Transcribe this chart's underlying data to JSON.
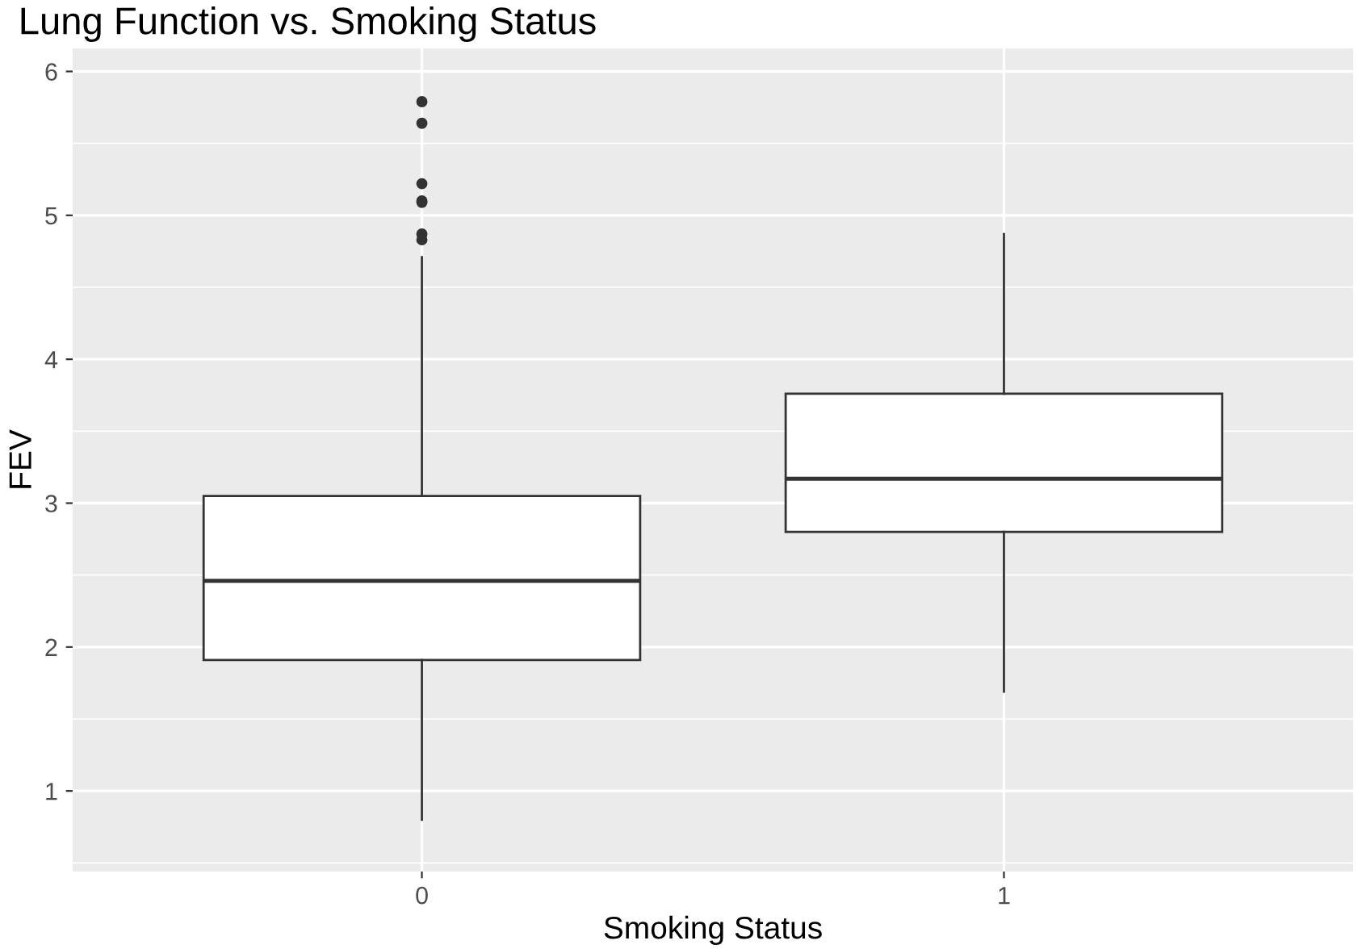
{
  "chart_data": {
    "type": "box",
    "title": "Lung Function vs. Smoking Status",
    "xlabel": "Smoking Status",
    "ylabel": "FEV",
    "categories": [
      "0",
      "1"
    ],
    "boxes": [
      {
        "low": 0.8,
        "q1": 1.91,
        "median": 2.46,
        "q3": 3.05,
        "high": 4.71,
        "outliers": [
          5.79,
          5.64,
          5.22,
          5.1,
          5.09,
          4.87,
          4.83
        ]
      },
      {
        "low": 1.69,
        "q1": 2.8,
        "median": 3.17,
        "q3": 3.76,
        "high": 4.87
      }
    ],
    "ylim": [
      0.44,
      6.16
    ],
    "yticks": [
      1,
      2,
      3,
      4,
      5,
      6
    ],
    "grid": true,
    "legend": false
  }
}
